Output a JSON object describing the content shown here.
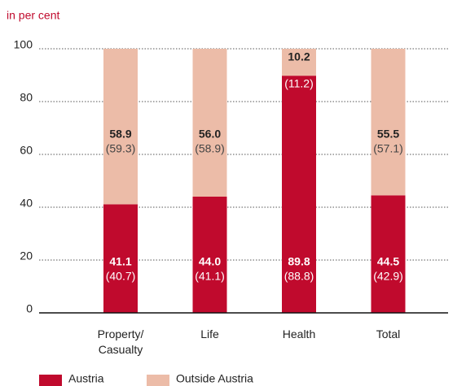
{
  "chart_data": {
    "type": "stacked_bar",
    "y_label": "in per cent",
    "categories": [
      "Property/\nCasualty",
      "Life",
      "Health",
      "Total"
    ],
    "series": [
      {
        "name": "Austria",
        "color": "#c00a2d",
        "values": [
          41.1,
          44.0,
          89.8,
          44.5
        ],
        "value_labels": [
          "41.1",
          "44.0",
          "89.8",
          "44.5"
        ],
        "prior_value_labels": [
          "(40.7)",
          "(41.1)",
          "(88.8)",
          "(42.9)"
        ]
      },
      {
        "name": "Outside Austria",
        "color": "#ecbca8",
        "values": [
          58.9,
          56.0,
          10.2,
          55.5
        ],
        "value_labels": [
          "58.9",
          "56.0",
          "10.2",
          "55.5"
        ],
        "prior_value_labels": [
          "(59.3)",
          "(58.9)",
          "(11.2)",
          "(57.1)"
        ]
      }
    ],
    "ylim": [
      0,
      100
    ],
    "yticks": [
      0,
      20,
      40,
      60,
      80,
      100
    ],
    "grid": true
  }
}
